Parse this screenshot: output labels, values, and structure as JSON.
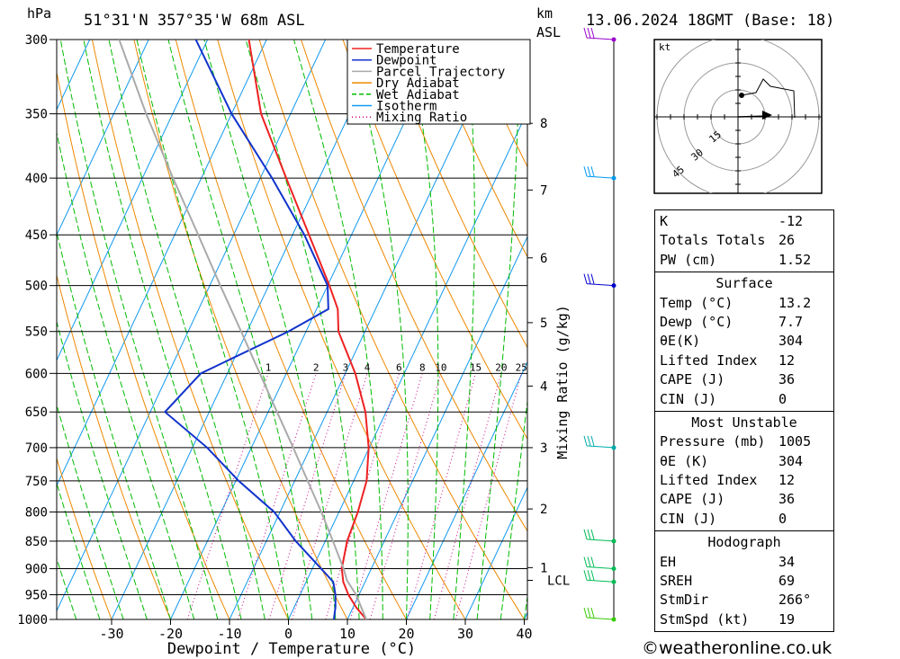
{
  "header": {
    "hpa_unit": "hPa",
    "location": "51°31'N  357°35'W  68m  ASL",
    "km_unit": "km",
    "asl": "ASL",
    "datetime": "13.06.2024  18GMT  (Base: 18)"
  },
  "chart_data": {
    "type": "skew-t",
    "title": "51°31'N  357°35'W  68m  ASL",
    "xlabel": "Dewpoint / Temperature (°C)",
    "ylabel": "hPa",
    "mixing_ratio_label": "Mixing Ratio (g/kg)",
    "xlim": [
      -40,
      40
    ],
    "ylim": [
      1000,
      300
    ],
    "pressure_levels": [
      300,
      350,
      400,
      450,
      500,
      550,
      600,
      650,
      700,
      750,
      800,
      850,
      900,
      950,
      1000
    ],
    "x_ticks": [
      -30,
      -20,
      -10,
      0,
      10,
      20,
      30,
      40
    ],
    "km_levels": [
      {
        "label": "8",
        "p": 357
      },
      {
        "label": "7",
        "p": 410
      },
      {
        "label": "6",
        "p": 472
      },
      {
        "label": "5",
        "p": 540
      },
      {
        "label": "4",
        "p": 616
      },
      {
        "label": "3",
        "p": 700
      },
      {
        "label": "2",
        "p": 795
      },
      {
        "label": "1",
        "p": 898
      },
      {
        "label": "LCL",
        "p": 922
      }
    ],
    "mixing_ratio_values": [
      "1",
      "2",
      "3",
      "4",
      "6",
      "8",
      "10",
      "15",
      "20",
      "25"
    ],
    "mixing_ratio_label_p": 600,
    "legend": [
      "Temperature",
      "Dewpoint",
      "Parcel Trajectory",
      "Dry Adiabat",
      "Wet Adiabat",
      "Isotherm",
      "Mixing Ratio"
    ],
    "series": [
      {
        "name": "Temperature",
        "points": [
          [
            1000,
            13.2
          ],
          [
            975,
            10.5
          ],
          [
            950,
            8.2
          ],
          [
            925,
            6.3
          ],
          [
            900,
            5.0
          ],
          [
            850,
            3.7
          ],
          [
            800,
            3.2
          ],
          [
            750,
            2.2
          ],
          [
            700,
            -0.1
          ],
          [
            650,
            -3.5
          ],
          [
            600,
            -8.3
          ],
          [
            550,
            -14.5
          ],
          [
            525,
            -16.4
          ],
          [
            500,
            -19.7
          ],
          [
            450,
            -27.2
          ],
          [
            400,
            -35.6
          ],
          [
            350,
            -45.0
          ],
          [
            300,
            -53.0
          ]
        ]
      },
      {
        "name": "Dewpoint",
        "points": [
          [
            1000,
            7.7
          ],
          [
            975,
            7.0
          ],
          [
            950,
            6.0
          ],
          [
            925,
            4.6
          ],
          [
            900,
            1.5
          ],
          [
            850,
            -5.0
          ],
          [
            800,
            -11.0
          ],
          [
            750,
            -19.5
          ],
          [
            700,
            -27.5
          ],
          [
            650,
            -37.5
          ],
          [
            600,
            -34.5
          ],
          [
            550,
            -23.0
          ],
          [
            525,
            -18.0
          ],
          [
            500,
            -20.0
          ],
          [
            450,
            -28.0
          ],
          [
            400,
            -38.0
          ],
          [
            350,
            -50.0
          ],
          [
            300,
            -62.0
          ]
        ]
      },
      {
        "name": "Parcel Trajectory",
        "points": [
          [
            1000,
            13.2
          ],
          [
            950,
            9.5
          ],
          [
            922,
            6.8
          ],
          [
            900,
            5.3
          ],
          [
            850,
            1.3
          ],
          [
            800,
            -3.0
          ],
          [
            750,
            -7.8
          ],
          [
            700,
            -12.9
          ],
          [
            650,
            -18.5
          ],
          [
            600,
            -24.5
          ],
          [
            550,
            -31.0
          ],
          [
            500,
            -38.2
          ],
          [
            450,
            -46.0
          ],
          [
            400,
            -54.8
          ],
          [
            350,
            -64.5
          ],
          [
            300,
            -75.0
          ]
        ]
      }
    ],
    "wind_barbs": [
      {
        "p": 300,
        "color": "#9900cc"
      },
      {
        "p": 400,
        "color": "#0099ee"
      },
      {
        "p": 500,
        "color": "#0000cc"
      },
      {
        "p": 700,
        "color": "#00aaaa"
      },
      {
        "p": 850,
        "color": "#00bb55"
      },
      {
        "p": 900,
        "color": "#00bb55"
      },
      {
        "p": 925,
        "color": "#00bb55"
      },
      {
        "p": 1000,
        "color": "#33cc00"
      }
    ],
    "hodograph": {
      "unit": "kt",
      "rings": [
        "15",
        "30",
        "45"
      ]
    }
  },
  "stats": {
    "indices": [
      {
        "label": "K",
        "value": "-12"
      },
      {
        "label": "Totals Totals",
        "value": "26"
      },
      {
        "label": "PW (cm)",
        "value": "1.52"
      }
    ],
    "surface_title": "Surface",
    "surface": [
      {
        "label": "Temp (°C)",
        "value": "13.2"
      },
      {
        "label": "Dewp (°C)",
        "value": "7.7"
      },
      {
        "label": "θE(K)",
        "value": "304"
      },
      {
        "label": "Lifted Index",
        "value": "12"
      },
      {
        "label": "CAPE (J)",
        "value": "36"
      },
      {
        "label": "CIN (J)",
        "value": "0"
      }
    ],
    "mu_title": "Most Unstable",
    "most_unstable": [
      {
        "label": "Pressure (mb)",
        "value": "1005"
      },
      {
        "label": "θE (K)",
        "value": "304"
      },
      {
        "label": "Lifted Index",
        "value": "12"
      },
      {
        "label": "CAPE (J)",
        "value": "36"
      },
      {
        "label": "CIN (J)",
        "value": "0"
      }
    ],
    "hodo_title": "Hodograph",
    "hodograph": [
      {
        "label": "EH",
        "value": "34"
      },
      {
        "label": "SREH",
        "value": "69"
      },
      {
        "label": "StmDir",
        "value": "266°"
      },
      {
        "label": "StmSpd (kt)",
        "value": "19"
      }
    ]
  },
  "footer": {
    "credit": "©weatheronline.co.uk"
  },
  "colors": {
    "temperature": "#ee2222",
    "dewpoint": "#1133cc",
    "parcel": "#aaaaaa",
    "dry_adiabat": "#ee8800",
    "wet_adiabat": "#00bb00",
    "isotherm": "#1199ee",
    "mixing_ratio": "#cc0088"
  }
}
